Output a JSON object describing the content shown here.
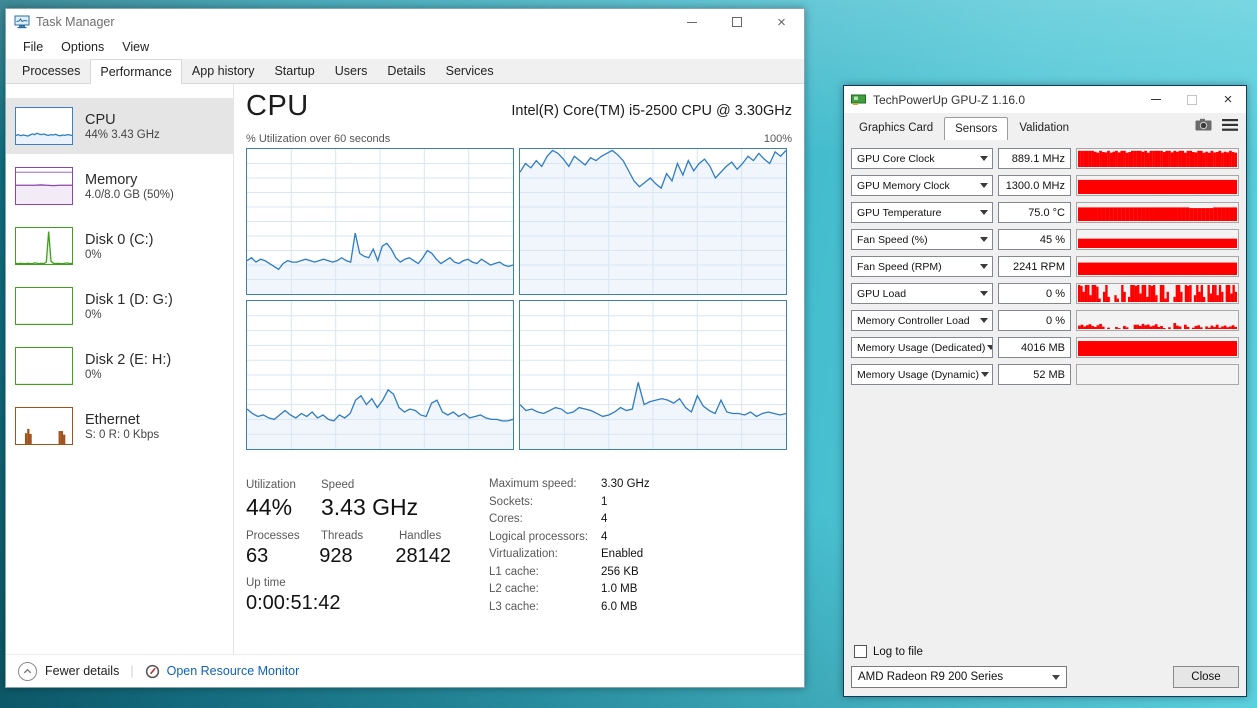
{
  "task_manager": {
    "title": "Task Manager",
    "menus": [
      "File",
      "Options",
      "View"
    ],
    "tabs": [
      "Processes",
      "Performance",
      "App history",
      "Startup",
      "Users",
      "Details",
      "Services"
    ],
    "sidebar": [
      {
        "title": "CPU",
        "subtitle": "44% 3.43 GHz",
        "color": "#3d7ebd"
      },
      {
        "title": "Memory",
        "subtitle": "4.0/8.0 GB (50%)",
        "color": "#8e44ad"
      },
      {
        "title": "Disk 0 (C:)",
        "subtitle": "0%",
        "color": "#3fa01e"
      },
      {
        "title": "Disk 1 (D: G:)",
        "subtitle": "0%",
        "color": "#3fa01e"
      },
      {
        "title": "Disk 2 (E: H:)",
        "subtitle": "0%",
        "color": "#3fa01e"
      },
      {
        "title": "Ethernet",
        "subtitle": "S: 0 R: 0 Kbps",
        "color": "#a0521d"
      }
    ],
    "main": {
      "title": "CPU",
      "device": "Intel(R) Core(TM) i5-2500 CPU @ 3.30GHz",
      "caption": "% Utilization over 60 seconds",
      "max_label": "100%"
    },
    "stats": {
      "utilization": {
        "label": "Utilization",
        "value": "44%"
      },
      "speed": {
        "label": "Speed",
        "value": "3.43 GHz"
      },
      "processes": {
        "label": "Processes",
        "value": "63"
      },
      "threads": {
        "label": "Threads",
        "value": "928"
      },
      "handles": {
        "label": "Handles",
        "value": "28142"
      },
      "uptime": {
        "label": "Up time",
        "value": "0:00:51:42"
      }
    },
    "details": [
      {
        "label": "Maximum speed:",
        "value": "3.30 GHz"
      },
      {
        "label": "Sockets:",
        "value": "1"
      },
      {
        "label": "Cores:",
        "value": "4"
      },
      {
        "label": "Logical processors:",
        "value": "4"
      },
      {
        "label": "Virtualization:",
        "value": "Enabled"
      },
      {
        "label": "L1 cache:",
        "value": "256 KB"
      },
      {
        "label": "L2 cache:",
        "value": "1.0 MB"
      },
      {
        "label": "L3 cache:",
        "value": "6.0 MB"
      }
    ],
    "footer": {
      "fewer_details": "Fewer details",
      "resource_monitor": "Open Resource Monitor"
    }
  },
  "gpuz": {
    "title": "TechPowerUp GPU-Z 1.16.0",
    "tabs": [
      "Graphics Card",
      "Sensors",
      "Validation"
    ],
    "sensors": [
      {
        "label": "GPU Core Clock",
        "value": "889.1 MHz"
      },
      {
        "label": "GPU Memory Clock",
        "value": "1300.0 MHz"
      },
      {
        "label": "GPU Temperature",
        "value": "75.0 °C"
      },
      {
        "label": "Fan Speed (%)",
        "value": "45 %"
      },
      {
        "label": "Fan Speed (RPM)",
        "value": "2241 RPM"
      },
      {
        "label": "GPU Load",
        "value": "0 %"
      },
      {
        "label": "Memory Controller Load",
        "value": "0 %"
      },
      {
        "label": "Memory Usage (Dedicated)",
        "value": "4016 MB"
      },
      {
        "label": "Memory Usage (Dynamic)",
        "value": "52 MB"
      }
    ],
    "log_label": "Log to file",
    "device": "AMD Radeon R9 200 Series",
    "close_label": "Close",
    "graph_color": "#ff0000"
  },
  "chart_data": {
    "cpu_graphs": {
      "tl": {
        "type": "area",
        "grid": true,
        "stroke": "#2e7cc3",
        "fill": "#f0f6fc",
        "values": [
          23,
          25,
          22,
          24,
          23,
          21,
          19,
          17,
          21,
          23,
          22,
          22,
          23,
          24,
          23,
          22,
          23,
          24,
          23,
          22,
          23,
          25,
          23,
          22,
          42,
          28,
          26,
          25,
          31,
          23,
          33,
          35,
          31,
          25,
          22,
          24,
          25,
          23,
          21,
          25,
          30,
          28,
          24,
          21,
          23,
          25,
          22,
          21,
          23,
          24,
          22,
          21,
          24,
          22,
          20,
          21,
          22,
          20,
          19,
          20
        ]
      },
      "tr": {
        "type": "area",
        "grid": true,
        "stroke": "#2e7cc3",
        "fill": "#f0f6fc",
        "values": [
          84,
          90,
          87,
          92,
          88,
          95,
          99,
          97,
          93,
          88,
          95,
          92,
          89,
          94,
          92,
          95,
          97,
          99,
          96,
          92,
          85,
          78,
          74,
          77,
          80,
          76,
          73,
          83,
          78,
          90,
          82,
          92,
          85,
          90,
          93,
          88,
          80,
          84,
          88,
          91,
          86,
          90,
          95,
          92,
          97,
          93,
          90,
          98,
          95,
          99
        ]
      },
      "bl": {
        "type": "area",
        "grid": true,
        "stroke": "#2e7cc3",
        "fill": "#f0f6fc",
        "values": [
          27,
          24,
          22,
          23,
          21,
          20,
          23,
          26,
          23,
          21,
          24,
          22,
          25,
          21,
          23,
          20,
          19,
          23,
          21,
          24,
          33,
          36,
          30,
          34,
          28,
          33,
          40,
          37,
          28,
          25,
          27,
          26,
          23,
          22,
          31,
          33,
          25,
          23,
          25,
          22,
          24,
          21,
          22,
          23,
          21,
          20,
          20,
          19,
          19,
          20
        ]
      },
      "br": {
        "type": "area",
        "grid": true,
        "stroke": "#2e7cc3",
        "fill": "#f0f6fc",
        "values": [
          30,
          26,
          27,
          25,
          24,
          26,
          28,
          27,
          24,
          25,
          28,
          27,
          26,
          24,
          22,
          23,
          25,
          28,
          26,
          27,
          45,
          30,
          32,
          33,
          34,
          33,
          31,
          34,
          28,
          25,
          36,
          29,
          26,
          24,
          33,
          25,
          24,
          24,
          23,
          25,
          22,
          24,
          25,
          24,
          23,
          24
        ]
      }
    },
    "thumbs": {
      "cpu": {
        "type": "area",
        "stroke": "#2e7cc3",
        "fill": "#eaf3fb",
        "values": [
          24,
          26,
          23,
          25,
          24,
          22,
          25,
          28,
          26,
          30,
          27,
          26,
          28,
          25,
          24,
          26,
          25,
          27,
          24,
          23,
          25,
          24,
          26,
          25,
          24
        ]
      },
      "memory": {
        "type": "area",
        "series": [
          {
            "values": [
              88,
              88,
              88,
              88,
              88,
              88,
              88,
              88,
              88,
              88
            ],
            "stroke": "#b98fd0",
            "fill": "none"
          },
          {
            "values": [
              52,
              52,
              52,
              52,
              53,
              52,
              51,
              52,
              52,
              52
            ],
            "stroke": "#8e44ad",
            "fill": "#f3ebf8"
          }
        ]
      },
      "disk0": {
        "type": "area",
        "stroke": "#3fa01e",
        "fill": "#eaf5e6",
        "values": [
          2,
          1,
          2,
          1,
          1,
          2,
          1,
          1,
          3,
          2,
          1,
          2,
          1,
          6,
          90,
          8,
          2,
          1,
          2,
          1,
          1,
          2,
          3,
          1,
          2
        ]
      },
      "disk1": {
        "type": "area",
        "stroke": "#cfe8c8",
        "fill": "none",
        "values": [
          0,
          0
        ]
      },
      "disk2": {
        "type": "area",
        "stroke": "#cfe8c8",
        "fill": "none",
        "values": [
          0,
          0
        ]
      },
      "ethernet": {
        "type": "bars",
        "color": "#a0521d",
        "values": [
          0,
          0,
          0,
          0,
          30,
          42,
          28,
          0,
          0,
          0,
          0,
          0,
          0,
          0,
          0,
          0,
          0,
          0,
          0,
          36,
          36,
          26,
          0,
          0,
          0
        ]
      }
    },
    "gpuz_graphs": {
      "core_clock": {
        "type": "bars",
        "color": "#ff0000",
        "values": [
          95,
          95,
          95,
          95,
          95,
          95,
          90,
          84,
          95,
          88,
          86,
          95,
          84,
          90,
          95,
          86,
          95,
          95,
          84,
          88,
          95,
          95,
          95,
          95,
          90,
          95,
          84,
          95,
          95,
          95,
          95,
          95,
          88,
          95,
          95,
          86,
          95,
          90,
          95,
          95,
          84,
          95,
          95,
          88,
          86,
          95,
          95,
          84,
          90,
          84,
          95,
          86,
          88,
          95,
          84,
          90,
          86,
          95,
          88,
          84
        ]
      },
      "memory_clock": {
        "type": "bars",
        "color": "#ff0000",
        "values": [
          83
        ]
      },
      "temperature": {
        "type": "bars",
        "color": "#ff0000",
        "values": [
          80,
          80,
          80,
          80,
          80,
          80,
          80,
          80,
          80,
          80,
          80,
          80,
          80,
          80,
          80,
          80,
          80,
          80,
          80,
          80,
          80,
          80,
          80,
          80,
          80,
          80,
          80,
          80,
          76,
          76,
          76,
          76,
          76,
          76,
          80,
          80,
          80,
          80,
          80,
          80
        ]
      },
      "fan_pct": {
        "type": "bars",
        "color": "#ff0000",
        "values": [
          55
        ]
      },
      "fan_rpm": {
        "type": "bars",
        "color": "#ff0000",
        "values": [
          73
        ]
      },
      "gpu_load": {
        "type": "bars",
        "color": "#ff0000",
        "values": [
          100,
          95,
          60,
          100,
          100,
          40,
          100,
          100,
          90,
          20,
          0,
          60,
          100,
          30,
          0,
          0,
          40,
          20,
          0,
          100,
          60,
          0,
          30,
          100,
          100,
          95,
          100,
          50,
          100,
          100,
          30,
          100,
          95,
          100,
          40,
          0,
          100,
          100,
          20,
          60,
          0,
          0,
          30,
          100,
          100,
          60,
          0,
          100,
          95,
          100,
          0,
          40,
          100,
          60,
          100,
          30,
          0,
          100,
          50,
          100,
          100,
          40,
          100,
          60,
          0,
          100,
          100,
          50,
          100,
          60
        ]
      },
      "mem_ctrl": {
        "type": "bars",
        "color": "#ff0000",
        "values": [
          20,
          25,
          15,
          22,
          28,
          18,
          12,
          22,
          30,
          14,
          0,
          8,
          0,
          0,
          12,
          5,
          0,
          18,
          10,
          0,
          0,
          25,
          25,
          18,
          30,
          22,
          26,
          15,
          20,
          28,
          12,
          18,
          6,
          0,
          10,
          0,
          35,
          20,
          15,
          0,
          25,
          12,
          0,
          8,
          18,
          22,
          10,
          0,
          15,
          8,
          20,
          12,
          25,
          8,
          15,
          20,
          10,
          15,
          22,
          12
        ]
      },
      "mem_dedicated": {
        "type": "bars",
        "color": "#ff0000",
        "values": [
          88
        ]
      },
      "mem_dynamic": {
        "type": "bars",
        "color": "#ff0000",
        "values": [
          0
        ]
      }
    }
  }
}
